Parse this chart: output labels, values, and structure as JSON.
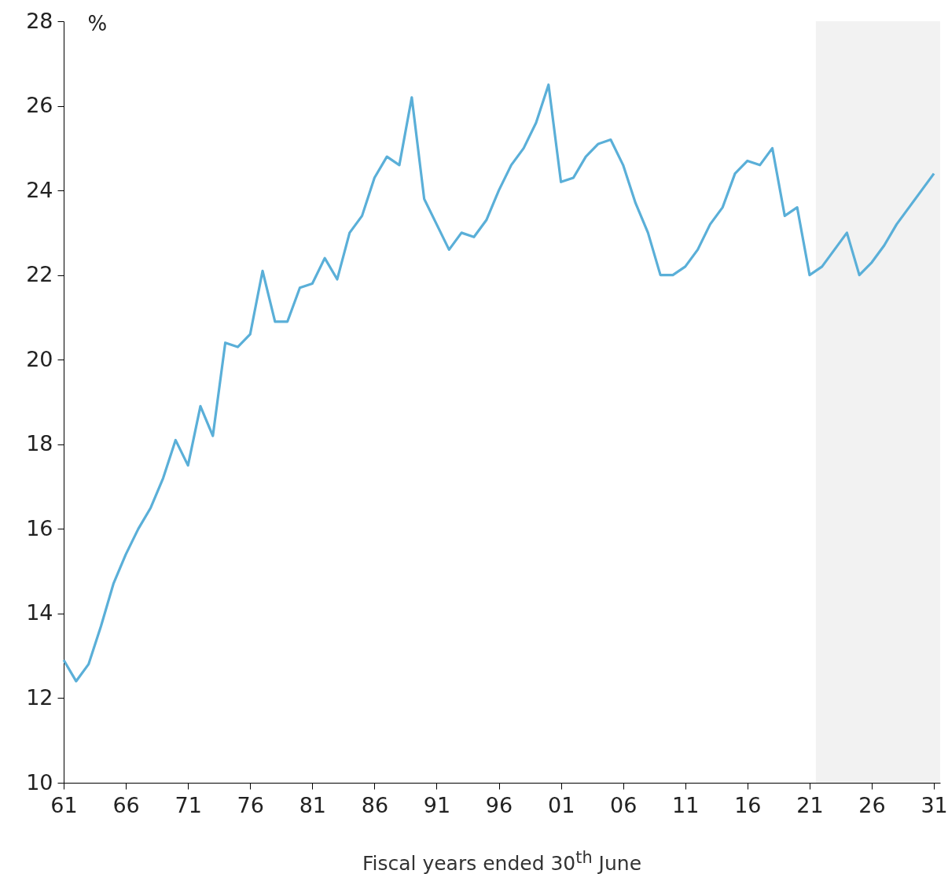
{
  "chart_data": {
    "type": "line",
    "xlabel": "Fiscal years ended 30$^{th}$ June",
    "ylabel": "%",
    "x": [
      1961,
      1962,
      1963,
      1964,
      1965,
      1966,
      1967,
      1968,
      1969,
      1970,
      1971,
      1972,
      1973,
      1974,
      1975,
      1976,
      1977,
      1978,
      1979,
      1980,
      1981,
      1982,
      1983,
      1984,
      1985,
      1986,
      1987,
      1988,
      1989,
      1990,
      1991,
      1992,
      1993,
      1994,
      1995,
      1996,
      1997,
      1998,
      1999,
      2000,
      2001,
      2002,
      2003,
      2004,
      2005,
      2006,
      2007,
      2008,
      2009,
      2010,
      2011,
      2012,
      2013,
      2014,
      2015,
      2016,
      2017,
      2018,
      2019,
      2020,
      2021,
      2022,
      2023,
      2024,
      2025,
      2026,
      2027,
      2028,
      2029,
      2030,
      2031
    ],
    "series": [
      {
        "color": "#5aafd8",
        "values": [
          12.9,
          12.4,
          12.8,
          13.7,
          14.7,
          15.4,
          16.0,
          16.5,
          17.2,
          18.1,
          17.5,
          18.9,
          18.2,
          20.4,
          20.3,
          20.6,
          22.1,
          20.9,
          20.9,
          21.7,
          21.8,
          22.4,
          21.9,
          23.0,
          23.4,
          24.3,
          24.8,
          24.6,
          26.2,
          23.8,
          23.2,
          22.6,
          23.0,
          22.9,
          23.3,
          24.0,
          24.6,
          25.0,
          25.6,
          26.5,
          24.2,
          24.3,
          24.8,
          25.1,
          25.2,
          24.6,
          23.7,
          23.0,
          22.0,
          22.0,
          22.2,
          22.6,
          23.2,
          23.6,
          24.4,
          24.7,
          24.6,
          25.0,
          23.4,
          23.6,
          22.0,
          22.2,
          22.6,
          23.0,
          22.0,
          22.3,
          22.7,
          23.2,
          23.6,
          24.0,
          24.4
        ]
      }
    ],
    "xlim": [
      1961,
      2031.5
    ],
    "ylim": [
      10,
      28
    ],
    "xticks": [
      {
        "value": 1961,
        "label": "61"
      },
      {
        "value": 1966,
        "label": "66"
      },
      {
        "value": 1971,
        "label": "71"
      },
      {
        "value": 1976,
        "label": "76"
      },
      {
        "value": 1981,
        "label": "81"
      },
      {
        "value": 1986,
        "label": "86"
      },
      {
        "value": 1991,
        "label": "91"
      },
      {
        "value": 1996,
        "label": "96"
      },
      {
        "value": 2001,
        "label": "01"
      },
      {
        "value": 2006,
        "label": "06"
      },
      {
        "value": 2011,
        "label": "11"
      },
      {
        "value": 2016,
        "label": "16"
      },
      {
        "value": 2021,
        "label": "21"
      },
      {
        "value": 2026,
        "label": "26"
      },
      {
        "value": 2031,
        "label": "31"
      }
    ],
    "yticks": [
      10,
      12,
      14,
      16,
      18,
      20,
      22,
      24,
      26,
      28
    ],
    "bands": [
      {
        "axis": "x",
        "from": 2021.5,
        "to": 2031.5,
        "color": "#f2f2f2"
      }
    ]
  }
}
